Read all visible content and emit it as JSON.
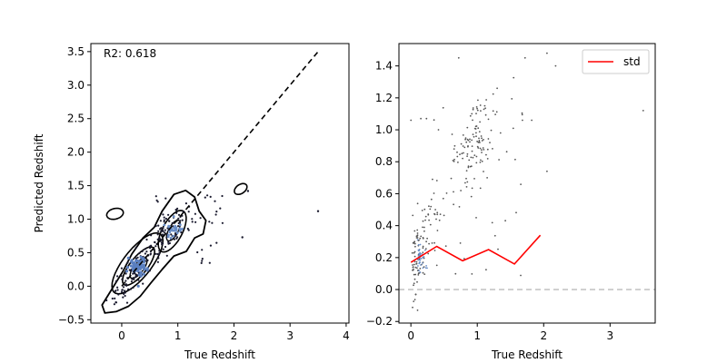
{
  "chart_data": [
    {
      "type": "scatter",
      "xlabel": "True Redshift",
      "ylabel": "Predicted Redshift",
      "annotation": "R2: 0.618",
      "xlim": [
        -0.55,
        4.05
      ],
      "ylim": [
        -0.55,
        3.62
      ],
      "xticks": [
        0,
        1,
        2,
        3,
        4
      ],
      "yticks": [
        -0.5,
        0.0,
        0.5,
        1.0,
        1.5,
        2.0,
        2.5,
        3.0,
        3.5
      ],
      "xtick_labels": [
        "0",
        "1",
        "2",
        "3",
        "4"
      ],
      "ytick_labels": [
        "−0.5",
        "0.0",
        "0.5",
        "1.0",
        "1.5",
        "2.0",
        "2.5",
        "3.0",
        "3.5"
      ],
      "reference_line": {
        "x": [
          0,
          3.5
        ],
        "y": [
          0,
          3.5
        ],
        "style": "dashed",
        "color": "#000000"
      },
      "overlay": "density contours",
      "point_color": "#1a1a2e",
      "outliers": [
        {
          "x": 2.15,
          "y": 0.73
        },
        {
          "x": 3.5,
          "y": 1.12
        },
        {
          "x": 2.25,
          "y": 1.42
        }
      ],
      "grid": false
    },
    {
      "type": "scatter",
      "xlabel": "True Redshift",
      "ylabel": "",
      "xlim": [
        -0.18,
        3.68
      ],
      "ylim": [
        -0.21,
        1.54
      ],
      "xticks": [
        0,
        1,
        2,
        3
      ],
      "yticks": [
        -0.2,
        0.0,
        0.2,
        0.4,
        0.6,
        0.8,
        1.0,
        1.2,
        1.4
      ],
      "xtick_labels": [
        "0",
        "1",
        "2",
        "3"
      ],
      "ytick_labels": [
        "−0.2",
        "0.0",
        "0.2",
        "0.4",
        "0.6",
        "0.8",
        "1.0",
        "1.2",
        "1.4"
      ],
      "series": [
        {
          "name": "std",
          "type": "line",
          "color": "#ff0000",
          "x": [
            0.0,
            0.39,
            0.78,
            1.17,
            1.56,
            1.95
          ],
          "y": [
            0.17,
            0.27,
            0.18,
            0.25,
            0.16,
            0.34
          ]
        }
      ],
      "hline": {
        "y": 0.0,
        "style": "dashed",
        "color": "#bbbbbb"
      },
      "legend": {
        "position": "top-right",
        "entries": [
          "std"
        ]
      },
      "point_color": "#555555",
      "grid": false
    }
  ]
}
